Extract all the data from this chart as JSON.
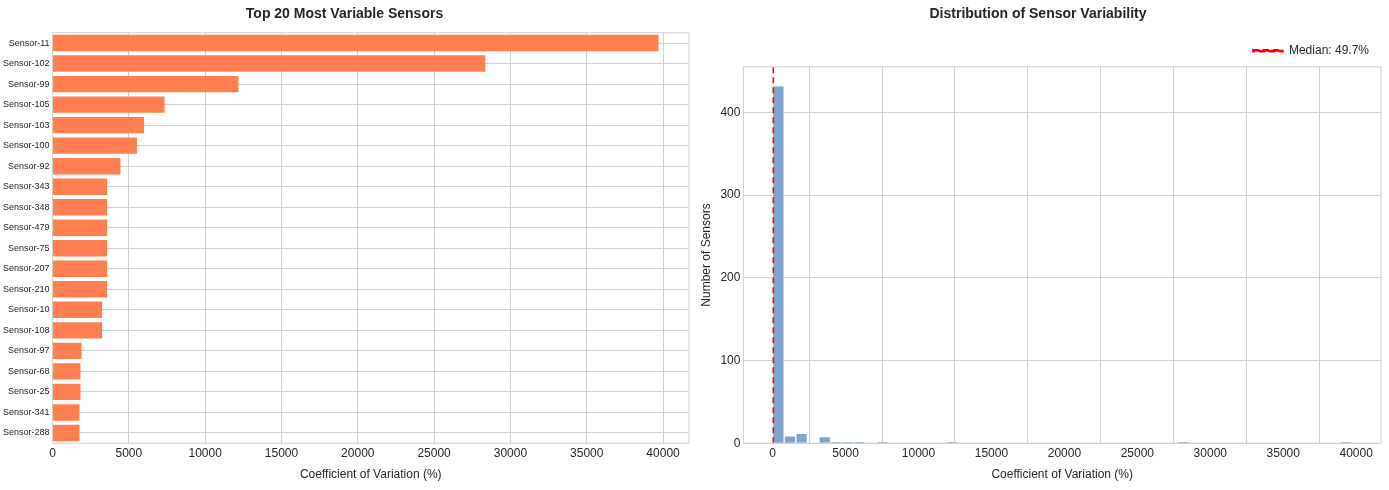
{
  "chart_data": [
    {
      "type": "bar",
      "orientation": "horizontal",
      "title": "Top 20 Most Variable Sensors",
      "xlabel": "Coefficient of Variation (%)",
      "categories": [
        "Sensor-11",
        "Sensor-102",
        "Sensor-99",
        "Sensor-105",
        "Sensor-103",
        "Sensor-100",
        "Sensor-92",
        "Sensor-343",
        "Sensor-348",
        "Sensor-479",
        "Sensor-75",
        "Sensor-207",
        "Sensor-210",
        "Sensor-10",
        "Sensor-108",
        "Sensor-97",
        "Sensor-68",
        "Sensor-25",
        "Sensor-341",
        "Sensor-288"
      ],
      "values": [
        39700,
        28360,
        12180,
        7340,
        6000,
        5530,
        4450,
        3580,
        3580,
        3580,
        3580,
        3580,
        3580,
        3250,
        3250,
        1900,
        1830,
        1830,
        1770,
        1770
      ],
      "color": "#ff7f50",
      "xlim": [
        0,
        41700
      ],
      "xticks": [
        0,
        5000,
        10000,
        15000,
        20000,
        25000,
        30000,
        35000,
        40000
      ],
      "grid": true
    },
    {
      "type": "histogram",
      "title": "Distribution of Sensor Variability",
      "xlabel": "Coefficient of Variation (%)",
      "ylabel": "Number of Sensors",
      "bins": [
        0,
        794,
        1588,
        2382,
        3176,
        3970,
        4764,
        5558,
        6352,
        7146,
        7940,
        8734,
        9528,
        10322,
        11116,
        11910,
        12704,
        13498,
        14292,
        15086,
        15880,
        16674,
        17468,
        18262,
        19056,
        19850,
        20644,
        21438,
        22232,
        23026,
        23820,
        24614,
        25408,
        26202,
        26996,
        27790,
        28584,
        29378,
        30172,
        30966,
        31760,
        32554,
        33348,
        34142,
        34936,
        35730,
        36524,
        37318,
        38112,
        38906,
        39700
      ],
      "values": [
        432,
        9,
        12,
        0,
        8,
        1,
        1,
        1,
        0,
        1,
        0,
        0,
        0,
        0,
        0,
        1,
        0,
        0,
        0,
        0,
        0,
        0,
        0,
        0,
        0,
        0,
        0,
        0,
        0,
        0,
        0,
        0,
        0,
        0,
        0,
        1,
        0,
        0,
        0,
        0,
        0,
        0,
        0,
        0,
        0,
        0,
        0,
        0,
        0,
        1
      ],
      "color": "#7ea6cc",
      "xlim": [
        -2000,
        41700
      ],
      "xticks": [
        0,
        5000,
        10000,
        15000,
        20000,
        25000,
        30000,
        35000,
        40000
      ],
      "ylim": [
        0,
        455
      ],
      "yticks": [
        0,
        100,
        200,
        300,
        400
      ],
      "grid": true,
      "legend": "top right",
      "ref_lines": [
        {
          "axis": "x",
          "value": 49.7,
          "label": "Median: 49.7%",
          "color": "#ff0000",
          "line_style": "dashed"
        }
      ]
    }
  ]
}
